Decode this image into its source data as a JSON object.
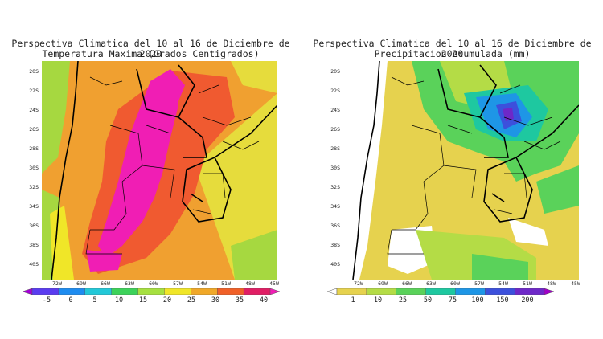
{
  "left_panel": {
    "title_line1": "Perspectiva Climatica del 10 al 16 de Diciembre de 2020",
    "title_line2": "Temperatura Maxima (Grados Centigrados)",
    "lat_labels": [
      "20S",
      "22S",
      "24S",
      "26S",
      "28S",
      "30S",
      "32S",
      "34S",
      "36S",
      "38S",
      "40S"
    ],
    "lon_labels": [
      "72W",
      "69W",
      "66W",
      "63W",
      "60W",
      "57W",
      "54W",
      "51W",
      "48W",
      "45W"
    ],
    "colorbar_labels": [
      "-5",
      "0",
      "5",
      "10",
      "15",
      "20",
      "25",
      "30",
      "35",
      "40"
    ],
    "colorbar_colors": [
      "#a400d8",
      "#5a3cf0",
      "#1e8cf0",
      "#22c8d8",
      "#3cd25a",
      "#a6e040",
      "#f0e628",
      "#f0a828",
      "#f06028",
      "#e01e64",
      "#f01eb4"
    ]
  },
  "right_panel": {
    "title_line1": "Perspectiva Climatica del 10 al 16 de Diciembre de 2020",
    "title_line2": "Precipitacion Acumulada (mm)",
    "lat_labels": [
      "20S",
      "22S",
      "24S",
      "26S",
      "28S",
      "30S",
      "32S",
      "34S",
      "36S",
      "38S",
      "40S"
    ],
    "lon_labels": [
      "72W",
      "69W",
      "66W",
      "63W",
      "60W",
      "57W",
      "54W",
      "51W",
      "48W",
      "45W"
    ],
    "colorbar_labels": [
      "1",
      "10",
      "25",
      "50",
      "75",
      "100",
      "150",
      "200"
    ],
    "colorbar_colors": [
      "#ffffff",
      "#e6d24e",
      "#b4dc46",
      "#5ad25a",
      "#1ec8a0",
      "#1e96e6",
      "#3c50dc",
      "#6e28c8",
      "#a000c8"
    ]
  }
}
